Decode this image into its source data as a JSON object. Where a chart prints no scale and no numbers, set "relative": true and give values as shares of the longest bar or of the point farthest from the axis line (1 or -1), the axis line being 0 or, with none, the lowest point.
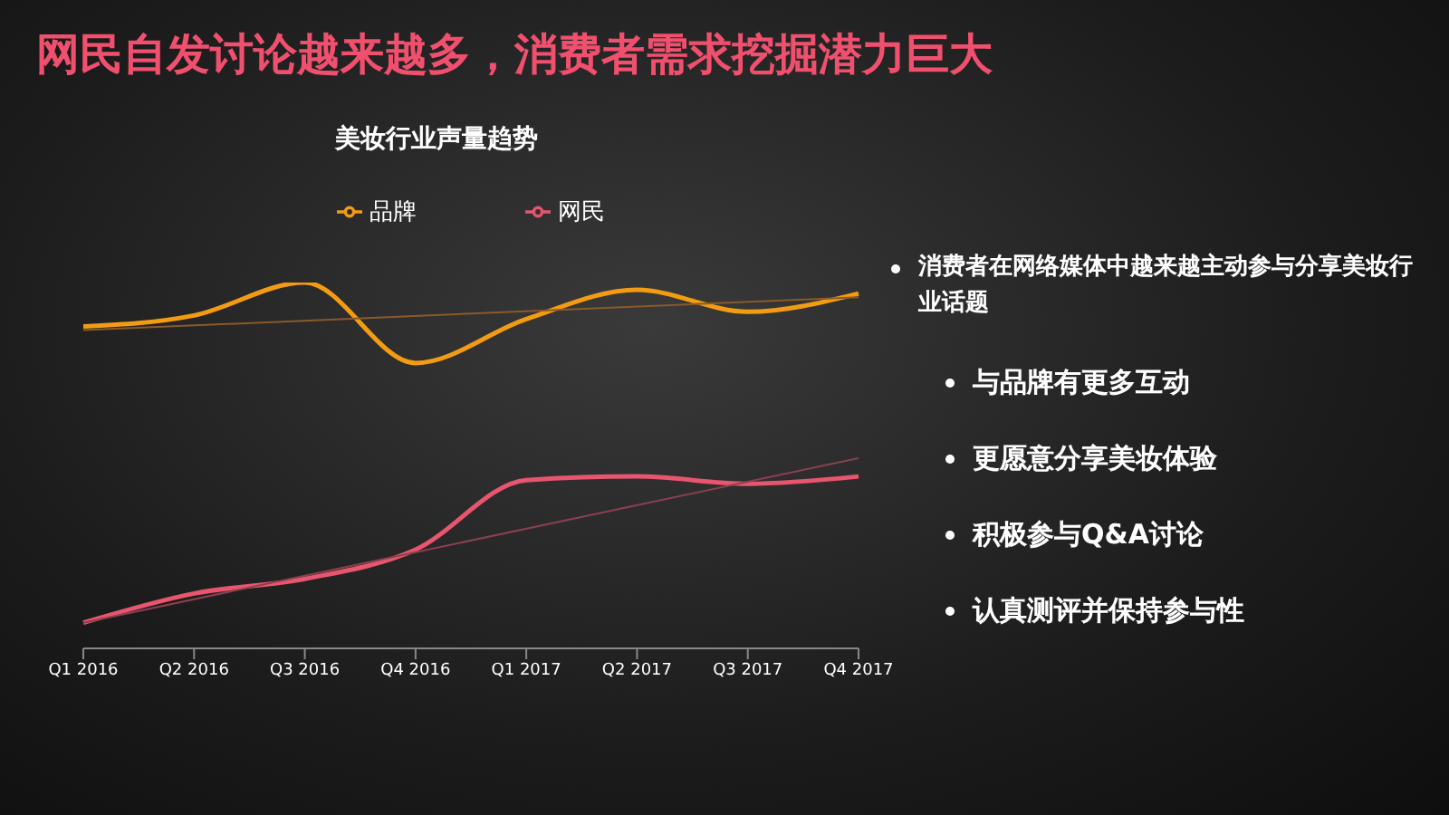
{
  "chart_data": {
    "type": "line",
    "title": "网民自发讨论越来越多，消费者需求挖掘潜力巨大",
    "subtitle": "美妆行业声量趋势",
    "relative": true,
    "categories": [
      "Q1 2016",
      "Q2 2016",
      "Q3 2016",
      "Q4 2016",
      "Q1 2017",
      "Q2 2017",
      "Q3 2017",
      "Q4 2017"
    ],
    "series": [
      {
        "name": "品牌",
        "color": "#f39c12",
        "values": [
          0.88,
          0.91,
          1,
          0.78,
          0.9,
          0.98,
          0.92,
          0.97
        ]
      },
      {
        "name": "网民",
        "color": "#e8556e",
        "values": [
          0.07,
          0.15,
          0.19,
          0.27,
          0.46,
          0.47,
          0.45,
          0.47
        ]
      },
      {
        "type": "line",
        "color": "#8a5a2a",
        "values": [
          0.87,
          null,
          null,
          null,
          null,
          null,
          null,
          0.96
        ]
      },
      {
        "type": "line",
        "color": "#8a4050",
        "values": [
          0.07,
          null,
          null,
          null,
          null,
          null,
          null,
          0.52
        ]
      }
    ],
    "legend": "top left",
    "grid": false,
    "marker": "none",
    "annotations": [
      "消费者在网络媒体中越来越主动参与分享美妆行业话题",
      "与品牌有更多互动",
      "更愿意分享美妆体验",
      "积极参与Q&A讨论",
      "认真测评并保持参与性"
    ]
  }
}
